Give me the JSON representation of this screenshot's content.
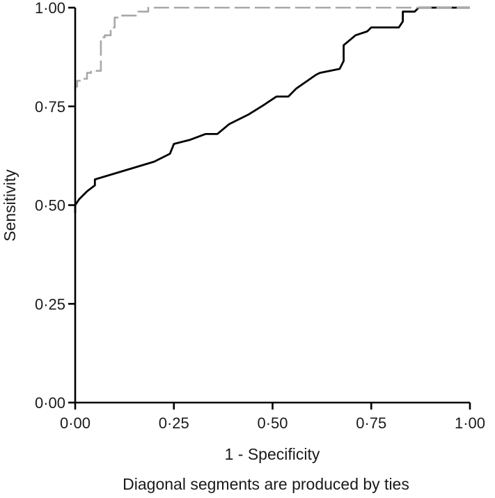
{
  "chart_data": {
    "type": "line",
    "xlabel": "1 - Specificity",
    "ylabel": "Sensitivity",
    "caption": "Diagonal segments are produced by ties",
    "xlim": [
      0,
      1
    ],
    "ylim": [
      0,
      1
    ],
    "xticks": [
      0,
      0.25,
      0.5,
      0.75,
      1
    ],
    "yticks": [
      0,
      0.25,
      0.5,
      0.75,
      1
    ],
    "xtick_labels": [
      "0·00",
      "0·25",
      "0·50",
      "0·75",
      "1·00"
    ],
    "ytick_labels": [
      "0·00",
      "0·25",
      "0·50",
      "0·75",
      "1·00"
    ],
    "grid": false,
    "series": [
      {
        "color": "#000000",
        "style": "solid",
        "points": [
          [
            0.0,
            0.48
          ],
          [
            0.0,
            0.5
          ],
          [
            0.01,
            0.515
          ],
          [
            0.03,
            0.535
          ],
          [
            0.05,
            0.55
          ],
          [
            0.05,
            0.565
          ],
          [
            0.1,
            0.58
          ],
          [
            0.2,
            0.61
          ],
          [
            0.24,
            0.63
          ],
          [
            0.25,
            0.655
          ],
          [
            0.29,
            0.665
          ],
          [
            0.33,
            0.68
          ],
          [
            0.36,
            0.68
          ],
          [
            0.39,
            0.705
          ],
          [
            0.44,
            0.73
          ],
          [
            0.48,
            0.755
          ],
          [
            0.51,
            0.775
          ],
          [
            0.54,
            0.775
          ],
          [
            0.56,
            0.795
          ],
          [
            0.61,
            0.83
          ],
          [
            0.62,
            0.835
          ],
          [
            0.67,
            0.845
          ],
          [
            0.68,
            0.865
          ],
          [
            0.68,
            0.905
          ],
          [
            0.71,
            0.93
          ],
          [
            0.74,
            0.94
          ],
          [
            0.75,
            0.95
          ],
          [
            0.82,
            0.95
          ],
          [
            0.83,
            0.965
          ],
          [
            0.83,
            0.99
          ],
          [
            0.86,
            0.99
          ],
          [
            0.87,
            1.0
          ],
          [
            1.0,
            1.0
          ]
        ]
      },
      {
        "color": "#a8a8a8",
        "style": "dashed",
        "points": [
          [
            0.0,
            0.79
          ],
          [
            0.0,
            0.8
          ],
          [
            0.005,
            0.8
          ],
          [
            0.005,
            0.815
          ],
          [
            0.02,
            0.815
          ],
          [
            0.02,
            0.82
          ],
          [
            0.03,
            0.82
          ],
          [
            0.03,
            0.835
          ],
          [
            0.04,
            0.835
          ],
          [
            0.04,
            0.84
          ],
          [
            0.065,
            0.84
          ],
          [
            0.065,
            0.925
          ],
          [
            0.075,
            0.925
          ],
          [
            0.075,
            0.93
          ],
          [
            0.09,
            0.93
          ],
          [
            0.09,
            0.95
          ],
          [
            0.1,
            0.95
          ],
          [
            0.1,
            0.975
          ],
          [
            0.115,
            0.975
          ],
          [
            0.115,
            0.98
          ],
          [
            0.16,
            0.98
          ],
          [
            0.16,
            0.99
          ],
          [
            0.185,
            0.99
          ],
          [
            0.185,
            1.0
          ],
          [
            1.0,
            1.0
          ]
        ]
      }
    ]
  }
}
